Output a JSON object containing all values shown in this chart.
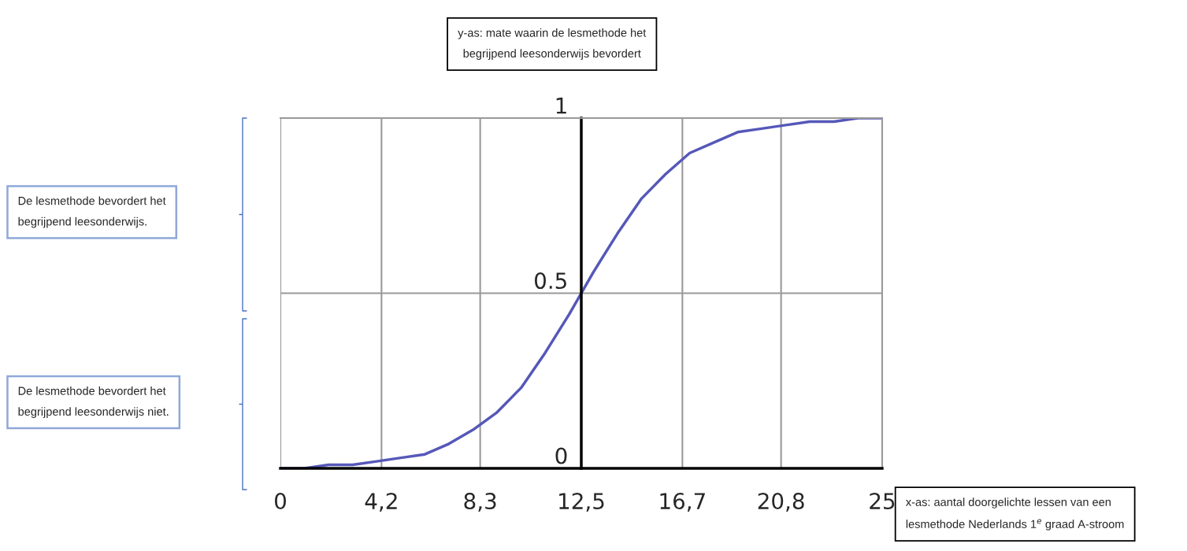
{
  "chart_data": {
    "type": "line",
    "x": [
      0,
      1,
      2,
      3,
      4,
      5,
      6,
      7,
      8,
      9,
      10,
      11,
      12,
      13,
      14,
      15,
      16,
      17,
      18,
      19,
      20,
      21,
      22,
      23,
      24,
      25
    ],
    "series": [
      {
        "color": "#5558b8",
        "values": [
          0.0,
          0.0,
          0.01,
          0.01,
          0.02,
          0.03,
          0.04,
          0.07,
          0.11,
          0.16,
          0.23,
          0.33,
          0.44,
          0.56,
          0.67,
          0.77,
          0.84,
          0.9,
          0.93,
          0.96,
          0.97,
          0.98,
          0.99,
          0.99,
          1.0,
          1.0
        ]
      }
    ],
    "xlim": [
      0,
      25
    ],
    "ylim": [
      0,
      1
    ],
    "xticks": [
      0,
      {
        "value": 4.2,
        "label": "4,2"
      },
      {
        "value": 8.3,
        "label": "8,3"
      },
      {
        "value": 12.5,
        "label": "12,5"
      },
      {
        "value": 16.7,
        "label": "16,7"
      },
      {
        "value": 20.8,
        "label": "20,8"
      },
      25
    ],
    "yticks": [
      0,
      0.5,
      1
    ],
    "grid": true,
    "marker": "none",
    "line_style": "solid",
    "annotations": [
      "y-as: mate waarin de lesmethode het\nbegrijpend leesonderwijs bevordert",
      "x-as: aantal doorgelichte lessen van een\nlesmethode Nederlands 1$^{e}$ graad A-stroom",
      "De lesmethode bevordert het\nbegrijpend leesonderwijs.",
      "De lesmethode bevordert het\nbegrijpend leesonderwijs niet."
    ]
  }
}
